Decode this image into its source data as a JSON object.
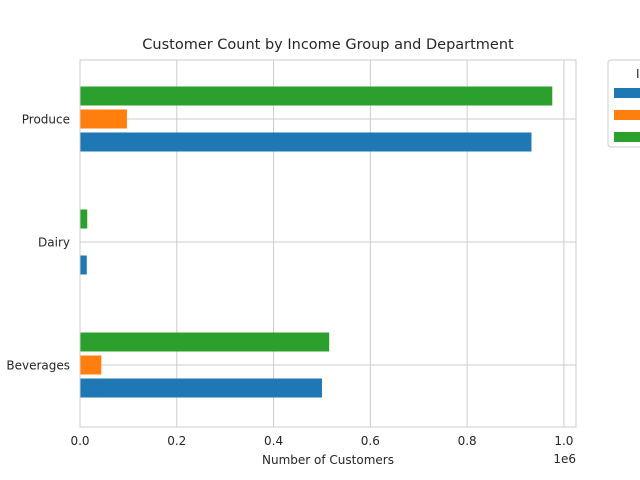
{
  "chart_data": {
    "type": "bar",
    "orientation": "horizontal",
    "title": "Customer Count by Income Group and Department",
    "xlabel": "Number of Customers",
    "ylabel": "",
    "x_offset_text": "1e6",
    "xlim": [
      0,
      1025000
    ],
    "xticks": [
      0,
      200000,
      400000,
      600000,
      800000,
      1000000
    ],
    "xtick_labels": [
      "0.0",
      "0.2",
      "0.4",
      "0.6",
      "0.8",
      "1.0"
    ],
    "categories": [
      "Beverages",
      "Dairy",
      "Produce"
    ],
    "grid": true,
    "legend": {
      "placement": "outside-top-right",
      "title": "I",
      "entries": [
        "",
        "",
        ""
      ]
    },
    "series": [
      {
        "name": "",
        "color": "#1f77b4",
        "values": [
          500000,
          14000,
          933000
        ]
      },
      {
        "name": "",
        "color": "#ff7f0e",
        "values": [
          44000,
          0,
          97000
        ]
      },
      {
        "name": "",
        "color": "#2ca02c",
        "values": [
          515000,
          15000,
          976000
        ]
      }
    ]
  }
}
